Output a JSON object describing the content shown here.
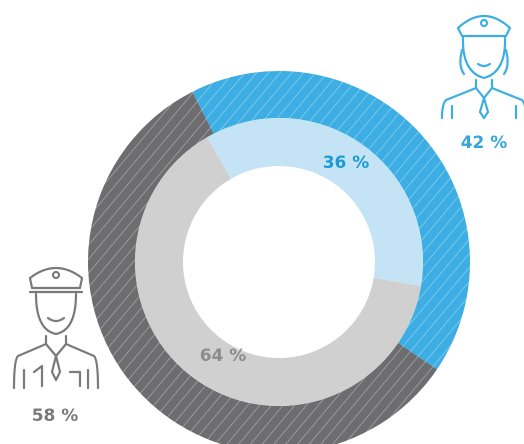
{
  "chart_data": {
    "type": "donut",
    "series": [
      {
        "values": [
          42,
          58
        ],
        "value_labels": [
          "42 %",
          "58 %"
        ],
        "colors": [
          "#3daee3",
          "#6d6d70"
        ],
        "label_colors": [
          "#35a6dc",
          "#7a7a7c"
        ]
      },
      {
        "values": [
          36,
          64
        ],
        "value_labels": [
          "36 %",
          "64 %"
        ],
        "colors": [
          "#c4e4f6",
          "#d0d0d0"
        ],
        "label_colors": [
          "#1c9ad6",
          "#8c8c8c"
        ]
      }
    ]
  }
}
